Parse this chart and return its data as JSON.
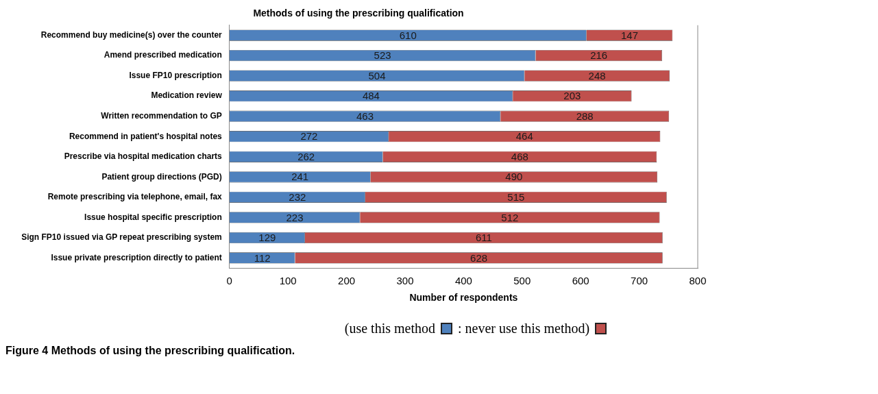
{
  "chart_data": {
    "type": "bar",
    "orientation": "horizontal",
    "stacked": true,
    "title": "Methods of using the prescribing qualification",
    "xlabel": "Number of respondents",
    "categories": [
      "Recommend buy medicine(s) over the counter",
      "Amend prescribed medication",
      "Issue FP10 prescription",
      "Medication review",
      "Written recommendation to GP",
      "Recommend in patient's hospital notes",
      "Prescribe via hospital medication charts",
      "Patient group directions (PGD)",
      "Remote prescribing via telephone, email, fax",
      "Issue hospital specific prescription",
      "Sign FP10 issued via GP repeat prescribing system",
      "Issue private prescription directly to patient"
    ],
    "series": [
      {
        "name": "(use this method",
        "color": "#4f81bd",
        "values": [
          610,
          523,
          504,
          484,
          463,
          272,
          262,
          241,
          232,
          223,
          129,
          112
        ]
      },
      {
        "name": ": never use this method)",
        "color": "#c0504d",
        "values": [
          147,
          216,
          248,
          203,
          288,
          464,
          468,
          490,
          515,
          512,
          611,
          628
        ]
      }
    ],
    "xlim": [
      0,
      800
    ],
    "xticks": [
      0,
      100,
      200,
      300,
      400,
      500,
      600,
      700,
      800
    ],
    "grid": false,
    "data_labels": true,
    "legend": "bottom",
    "annotations": [
      "Figure 4 Methods of using the prescribing qualification."
    ]
  }
}
